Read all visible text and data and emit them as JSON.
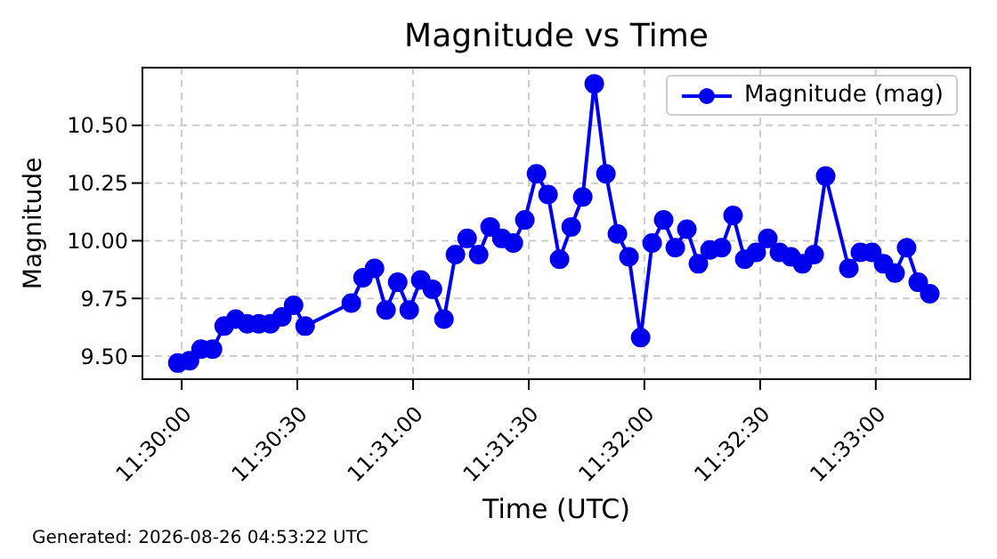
{
  "chart_data": {
    "type": "line",
    "title": "Magnitude vs Time",
    "xlabel": "Time (UTC)",
    "ylabel": "Magnitude",
    "annotations": [
      "Generated: 2026-08-26 04:53:22 UTC"
    ],
    "x": [
      11.49972,
      11.50056,
      11.50139,
      11.50222,
      11.50306,
      11.50389,
      11.50472,
      11.50556,
      11.50639,
      11.50722,
      11.50806,
      11.50889,
      11.51222,
      11.51306,
      11.51389,
      11.51472,
      11.51556,
      11.51639,
      11.51722,
      11.51806,
      11.51889,
      11.51972,
      11.52056,
      11.52139,
      11.52222,
      11.52306,
      11.52389,
      11.52472,
      11.52556,
      11.52639,
      11.52722,
      11.52806,
      11.52889,
      11.52972,
      11.53056,
      11.53139,
      11.53222,
      11.53306,
      11.53389,
      11.53472,
      11.53556,
      11.53639,
      11.53722,
      11.53806,
      11.53889,
      11.53972,
      11.54056,
      11.54139,
      11.54222,
      11.54306,
      11.54389,
      11.54472,
      11.54556,
      11.54639,
      11.54806,
      11.54889,
      11.54972,
      11.55056,
      11.55139,
      11.55222,
      11.55306,
      11.55389
    ],
    "series": [
      {
        "name": "Magnitude (mag)",
        "color": "#0000ee",
        "values": [
          9.47,
          9.48,
          9.53,
          9.53,
          9.63,
          9.66,
          9.64,
          9.64,
          9.64,
          9.67,
          9.72,
          9.63,
          9.73,
          9.84,
          9.88,
          9.7,
          9.82,
          9.7,
          9.83,
          9.79,
          9.66,
          9.94,
          10.01,
          9.94,
          10.06,
          10.01,
          9.99,
          10.09,
          10.29,
          10.2,
          9.92,
          10.06,
          10.19,
          10.68,
          10.29,
          10.03,
          9.93,
          9.58,
          9.99,
          10.09,
          9.97,
          10.05,
          9.9,
          9.96,
          9.97,
          10.11,
          9.92,
          9.95,
          10.01,
          9.95,
          9.93,
          9.9,
          9.94,
          10.28,
          9.88,
          9.95,
          9.95,
          9.9,
          9.86,
          9.97,
          9.82,
          9.77
        ]
      }
    ],
    "xlim": [
      11.49717,
      11.55681
    ],
    "xticks": [
      {
        "value": 11.5,
        "label": "11:30:00"
      },
      {
        "value": 11.50833,
        "label": "11:30:30"
      },
      {
        "value": 11.51667,
        "label": "11:31:00"
      },
      {
        "value": 11.525,
        "label": "11:31:30"
      },
      {
        "value": 11.53333,
        "label": "11:32:00"
      },
      {
        "value": 11.54167,
        "label": "11:32:30"
      },
      {
        "value": 11.55,
        "label": "11:33:00"
      }
    ],
    "ylim": [
      9.4,
      10.75
    ],
    "yticks": [
      {
        "value": 9.5,
        "label": "9.50"
      },
      {
        "value": 9.75,
        "label": "9.75"
      },
      {
        "value": 10,
        "label": "10.00"
      },
      {
        "value": 10.25,
        "label": "10.25"
      },
      {
        "value": 10.5,
        "label": "10.50"
      }
    ],
    "grid": true,
    "legend": "top right",
    "marker": "circle",
    "line_style": "solid"
  }
}
